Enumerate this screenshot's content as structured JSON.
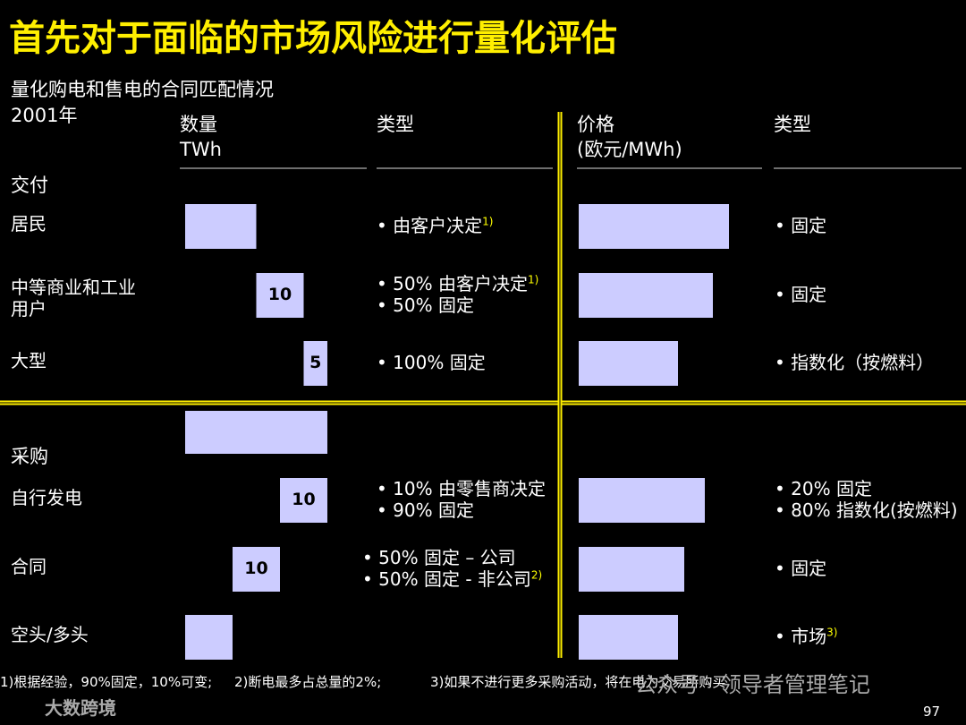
{
  "title": "首先对于面临的市场风险进行量化评估",
  "subtitle": "量化购电和售电的合同匹配情况",
  "year": "2001年",
  "headers": {
    "quantity": [
      "数量",
      "TWh"
    ],
    "type1": "类型",
    "price": [
      "价格",
      "(欧元/MWh)"
    ],
    "type2": "类型"
  },
  "total_quantity": 30,
  "sections": [
    {
      "label": "交付",
      "rows": [
        {
          "label": [
            "居民"
          ],
          "quantity": 15,
          "quantity_label": null,
          "types": [
            {
              "text": "• 由客户决定",
              "note": "1)"
            }
          ],
          "price_types": [
            {
              "text": "• 固定",
              "note": null
            }
          ]
        },
        {
          "label": [
            "中等商业和工业",
            "用户"
          ],
          "quantity": 10,
          "quantity_label": "10",
          "types": [
            {
              "text": "• 50% 由客户决定",
              "note": "1)"
            },
            {
              "text": "• 50% 固定",
              "note": null
            }
          ],
          "price_types": [
            {
              "text": "• 固定",
              "note": null
            }
          ]
        },
        {
          "label": [
            "大型"
          ],
          "quantity": 5,
          "quantity_label": "5",
          "types": [
            {
              "text": "• 100% 固定",
              "note": null
            }
          ],
          "price_types": [
            {
              "text": "• 指数化（按燃料）",
              "note": null
            }
          ]
        }
      ]
    },
    {
      "label": "采购",
      "rows": [
        {
          "label": [
            "自行发电"
          ],
          "quantity": 10,
          "quantity_label": "10",
          "types": [
            {
              "text": "• 10% 由零售商决定",
              "note": null
            },
            {
              "text": "• 90% 固定",
              "note": null
            }
          ],
          "price_types": [
            {
              "text": "• 20% 固定",
              "note": null
            },
            {
              "text": "• 80% 指数化(按燃料)",
              "note": null
            }
          ]
        },
        {
          "label": [
            "合同"
          ],
          "quantity": 10,
          "quantity_label": "10",
          "types": [
            {
              "text": "• 50% 固定 – 公司",
              "note": null
            },
            {
              "text": "• 50% 固定 - 非公司",
              "note": "2)"
            }
          ],
          "price_types": [
            {
              "text": "• 固定",
              "note": null
            }
          ]
        },
        {
          "label": [
            "空头/多头"
          ],
          "quantity": 10,
          "quantity_label": null,
          "types": [],
          "price_types": [
            {
              "text": "• 市场",
              "note": "3)"
            }
          ]
        }
      ]
    }
  ],
  "footnotes": [
    "1)根据经验，90%固定，10%可变;",
    "2)断电最多占总量的2%;",
    "3)如果不进行更多采购活动，将在电力交易所购买"
  ],
  "watermark": "公众号 · 领导者管理笔记",
  "logo": "大数跨境",
  "page_number": "97"
}
